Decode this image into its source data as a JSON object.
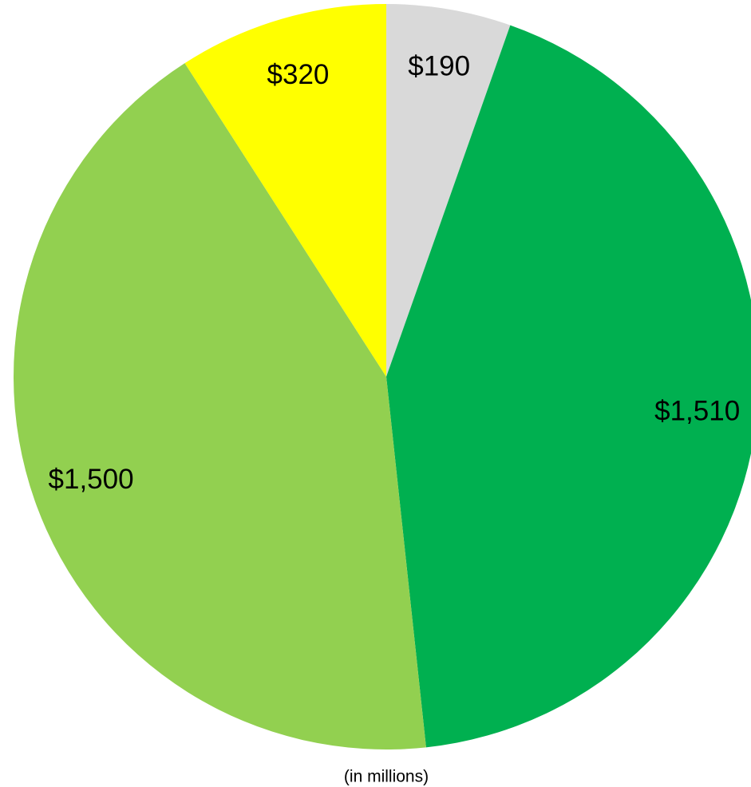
{
  "chart_data": {
    "type": "pie",
    "subtitle": "(in millions)",
    "values": [
      190,
      1510,
      1500,
      320
    ],
    "value_labels": [
      "$190",
      "$1,510",
      "$1,500",
      "$320"
    ],
    "colors": [
      "#d9d9d9",
      "#00b050",
      "#92d050",
      "#ffff00"
    ]
  }
}
